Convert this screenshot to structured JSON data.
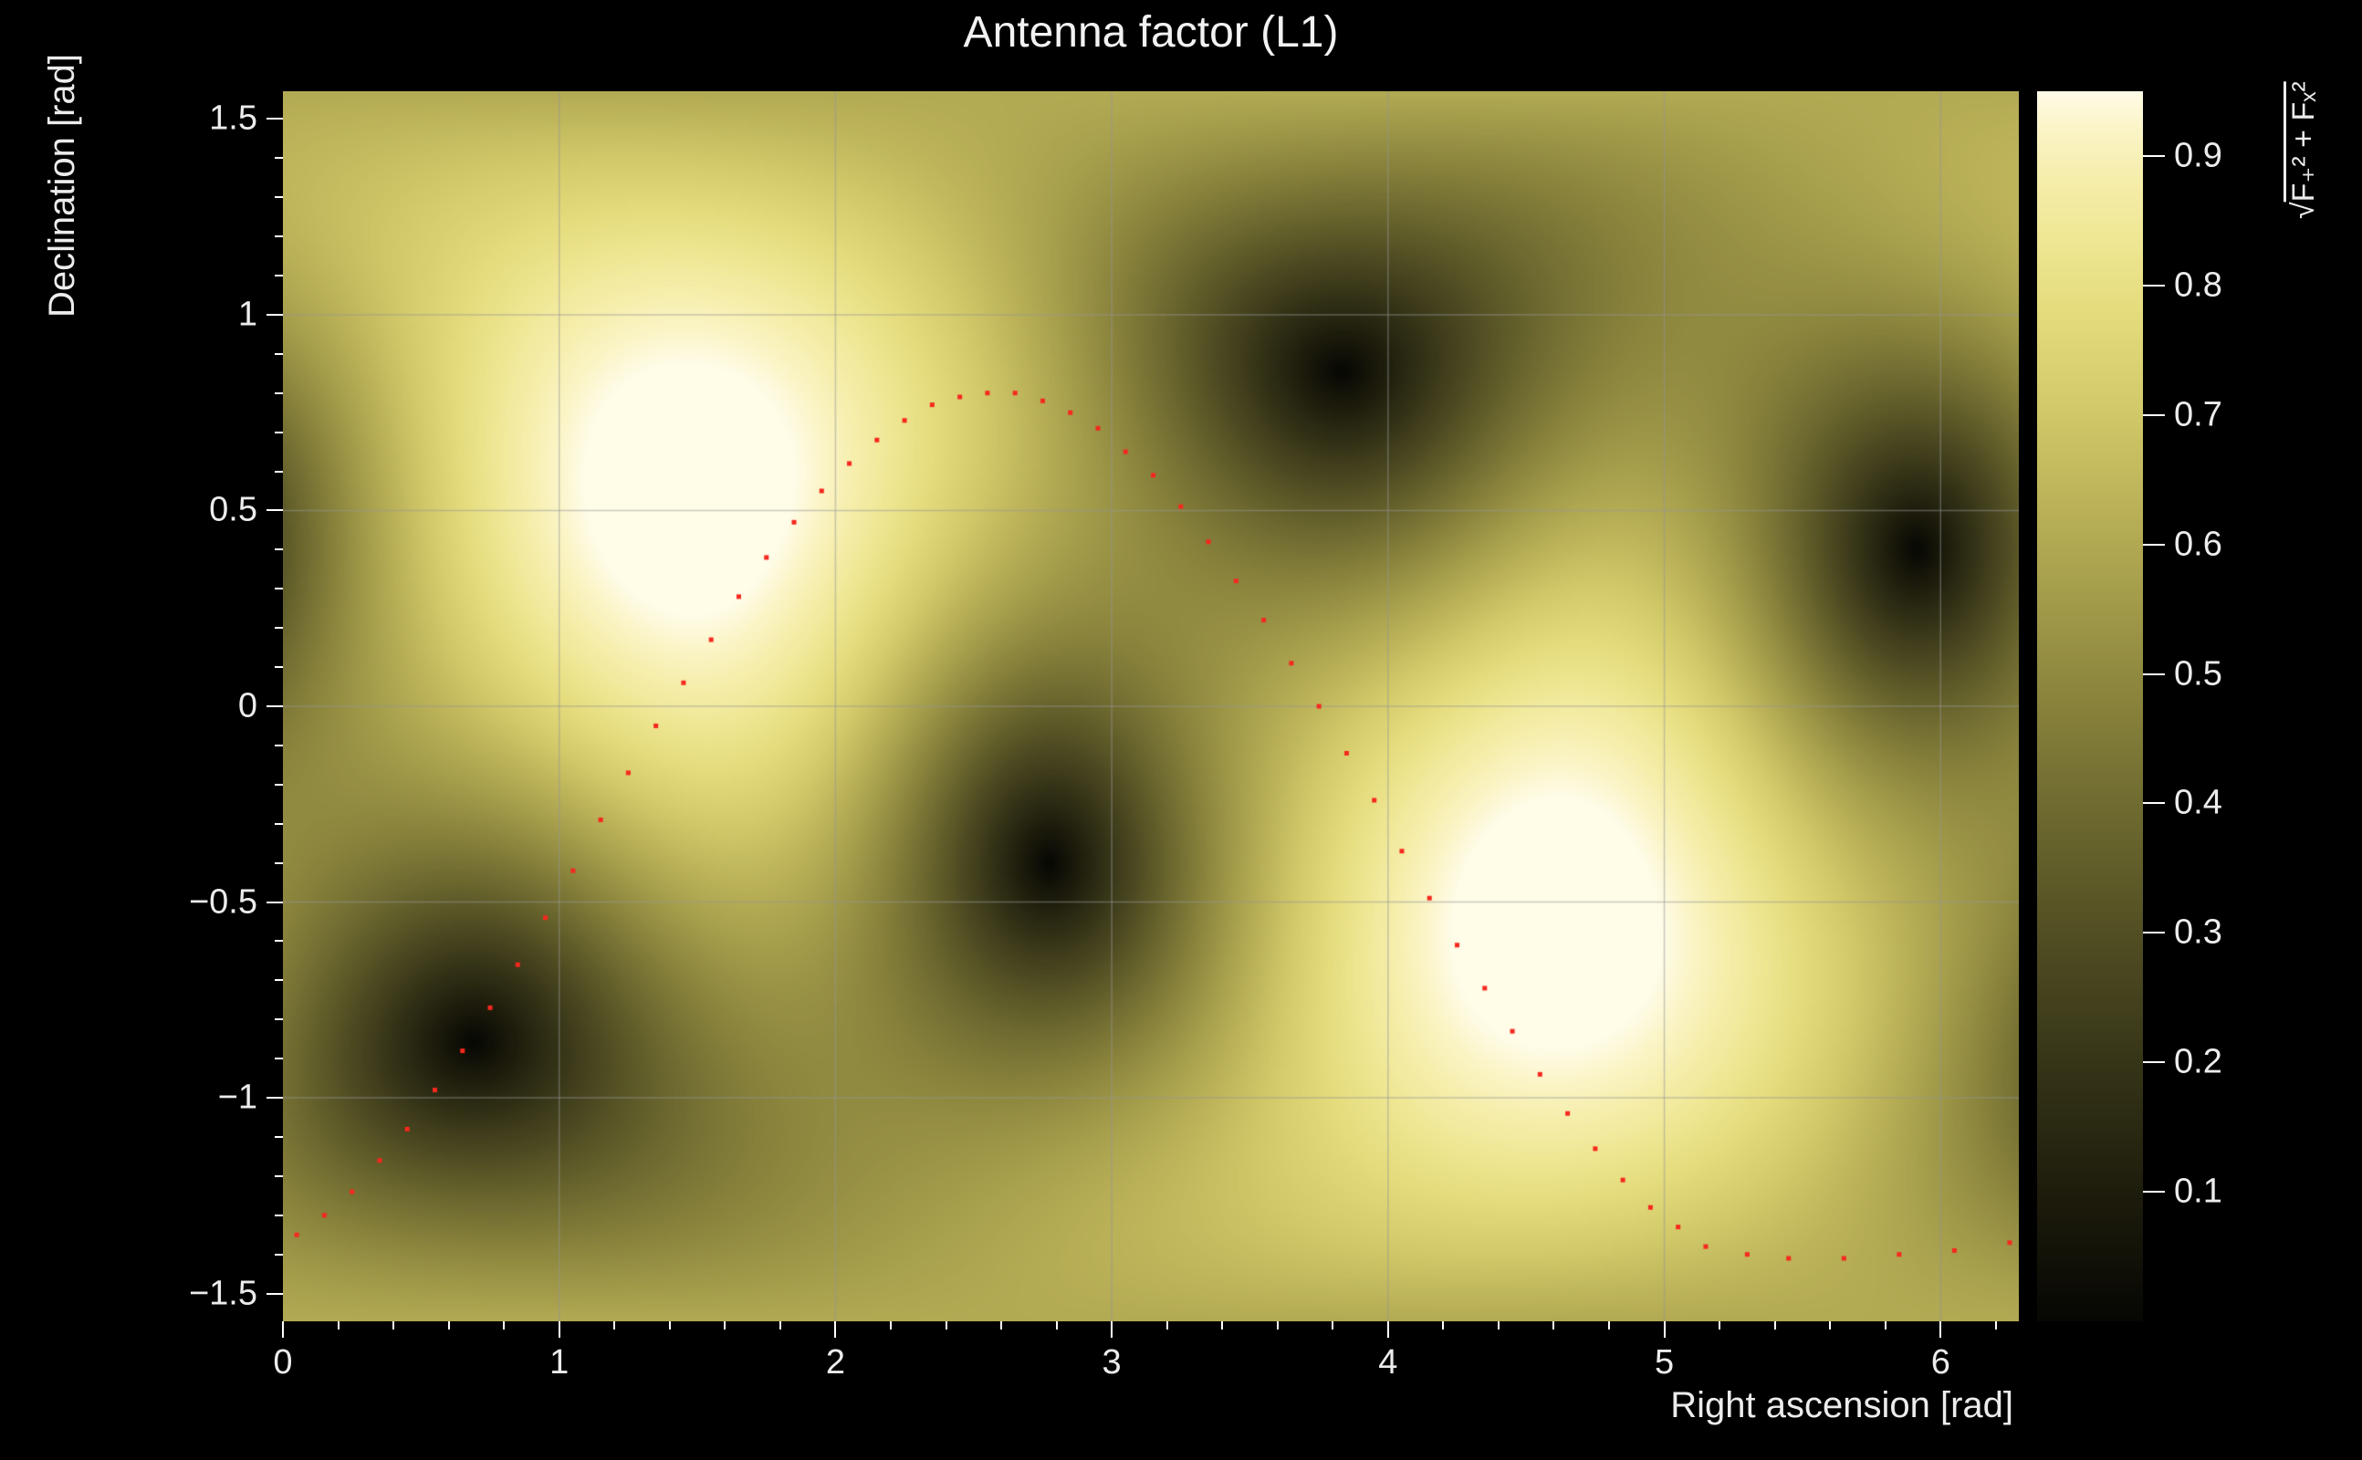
{
  "chart_data": {
    "type": "heatmap",
    "title": "Antenna factor (L1)",
    "xlabel": "Right ascension [rad]",
    "ylabel": "Declination [rad]",
    "zlabel": "√(F₊² + Fₓ²)",
    "zlabel_radical": "√",
    "zlabel_radicand": "F₊² + Fₓ²",
    "xlim": [
      0,
      6.2832
    ],
    "ylim": [
      -1.5708,
      1.5708
    ],
    "zlim": [
      0,
      0.95
    ],
    "x_ticks": [
      {
        "v": 0,
        "label": "0"
      },
      {
        "v": 1,
        "label": "1"
      },
      {
        "v": 2,
        "label": "2"
      },
      {
        "v": 3,
        "label": "3"
      },
      {
        "v": 4,
        "label": "4"
      },
      {
        "v": 5,
        "label": "5"
      },
      {
        "v": 6,
        "label": "6"
      }
    ],
    "x_minor_step": 0.2,
    "y_ticks": [
      {
        "v": -1.5,
        "label": "−1.5"
      },
      {
        "v": -1.0,
        "label": "−1"
      },
      {
        "v": -0.5,
        "label": "−0.5"
      },
      {
        "v": 0.0,
        "label": "0"
      },
      {
        "v": 0.5,
        "label": "0.5"
      },
      {
        "v": 1.0,
        "label": "1"
      },
      {
        "v": 1.5,
        "label": "1.5"
      }
    ],
    "y_minor_step": 0.1,
    "colorbar_ticks": [
      {
        "v": 0.1,
        "label": "0.1"
      },
      {
        "v": 0.2,
        "label": "0.2"
      },
      {
        "v": 0.3,
        "label": "0.3"
      },
      {
        "v": 0.4,
        "label": "0.4"
      },
      {
        "v": 0.5,
        "label": "0.5"
      },
      {
        "v": 0.6,
        "label": "0.6"
      },
      {
        "v": 0.7,
        "label": "0.7"
      },
      {
        "v": 0.8,
        "label": "0.8"
      },
      {
        "v": 0.9,
        "label": "0.9"
      }
    ],
    "grid_x": [
      1,
      2,
      3,
      4,
      5,
      6
    ],
    "grid_y": [
      -1.0,
      -0.5,
      0.0,
      0.5,
      1.0
    ],
    "antenna_nulls": [
      [
        0.72,
        -0.87
      ],
      [
        2.76,
        -0.42
      ],
      [
        3.86,
        0.87
      ],
      [
        5.9,
        0.42
      ]
    ],
    "antenna_maxima": [
      [
        1.47,
        0.55
      ],
      [
        4.61,
        -0.55
      ]
    ],
    "track_points": [
      [
        0.05,
        -1.35
      ],
      [
        0.15,
        -1.3
      ],
      [
        0.25,
        -1.24
      ],
      [
        0.35,
        -1.16
      ],
      [
        0.45,
        -1.08
      ],
      [
        0.55,
        -0.98
      ],
      [
        0.65,
        -0.88
      ],
      [
        0.75,
        -0.77
      ],
      [
        0.85,
        -0.66
      ],
      [
        0.95,
        -0.54
      ],
      [
        1.05,
        -0.42
      ],
      [
        1.15,
        -0.29
      ],
      [
        1.25,
        -0.17
      ],
      [
        1.35,
        -0.05
      ],
      [
        1.45,
        0.06
      ],
      [
        1.55,
        0.17
      ],
      [
        1.65,
        0.28
      ],
      [
        1.75,
        0.38
      ],
      [
        1.85,
        0.47
      ],
      [
        1.95,
        0.55
      ],
      [
        2.05,
        0.62
      ],
      [
        2.15,
        0.68
      ],
      [
        2.25,
        0.73
      ],
      [
        2.35,
        0.77
      ],
      [
        2.45,
        0.79
      ],
      [
        2.55,
        0.8
      ],
      [
        2.65,
        0.8
      ],
      [
        2.75,
        0.78
      ],
      [
        2.85,
        0.75
      ],
      [
        2.95,
        0.71
      ],
      [
        3.05,
        0.65
      ],
      [
        3.15,
        0.59
      ],
      [
        3.25,
        0.51
      ],
      [
        3.35,
        0.42
      ],
      [
        3.45,
        0.32
      ],
      [
        3.55,
        0.22
      ],
      [
        3.65,
        0.11
      ],
      [
        3.75,
        0.0
      ],
      [
        3.85,
        -0.12
      ],
      [
        3.95,
        -0.24
      ],
      [
        4.05,
        -0.37
      ],
      [
        4.15,
        -0.49
      ],
      [
        4.25,
        -0.61
      ],
      [
        4.35,
        -0.72
      ],
      [
        4.45,
        -0.83
      ],
      [
        4.55,
        -0.94
      ],
      [
        4.65,
        -1.04
      ],
      [
        4.75,
        -1.13
      ],
      [
        4.85,
        -1.21
      ],
      [
        4.95,
        -1.28
      ],
      [
        5.05,
        -1.33
      ],
      [
        5.15,
        -1.38
      ],
      [
        5.3,
        -1.4
      ],
      [
        5.45,
        -1.41
      ],
      [
        5.65,
        -1.41
      ],
      [
        5.85,
        -1.4
      ],
      [
        6.05,
        -1.39
      ],
      [
        6.25,
        -1.37
      ]
    ],
    "colormap_stops": [
      [
        0.0,
        "#070704"
      ],
      [
        0.1,
        "#1d1c0c"
      ],
      [
        0.2,
        "#343317"
      ],
      [
        0.3,
        "#4e4b22"
      ],
      [
        0.4,
        "#6a662e"
      ],
      [
        0.5,
        "#88823c"
      ],
      [
        0.58,
        "#a19a49"
      ],
      [
        0.66,
        "#bab158"
      ],
      [
        0.74,
        "#d2c969"
      ],
      [
        0.82,
        "#e5dc7d"
      ],
      [
        0.88,
        "#efe794"
      ],
      [
        0.93,
        "#f6eeac"
      ],
      [
        0.97,
        "#fbf5c8"
      ],
      [
        1.0,
        "#fffce8"
      ]
    ]
  },
  "colors": {
    "background": "#000000",
    "text": "#ececec",
    "tick": "#ffffff",
    "grid": "rgba(150,150,150,0.5)",
    "track": "#f5281e"
  }
}
